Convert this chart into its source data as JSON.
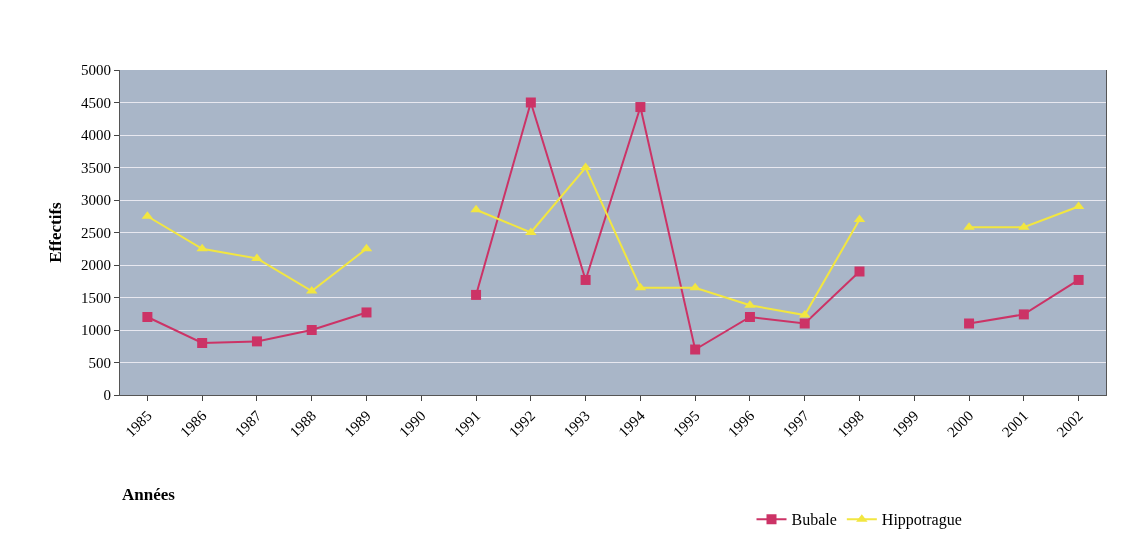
{
  "chart_data": {
    "type": "line",
    "xlabel": "Années",
    "ylabel": "Effectifs",
    "categories": [
      "1985",
      "1986",
      "1987",
      "1988",
      "1989",
      "1990",
      "1991",
      "1992",
      "1993",
      "1994",
      "1995",
      "1996",
      "1997",
      "1998",
      "1999",
      "2000",
      "2001",
      "2002"
    ],
    "series": [
      {
        "name": "Bubale",
        "color": "#cc3366",
        "marker": "square",
        "values": [
          1200,
          800,
          825,
          1000,
          1270,
          null,
          1540,
          4500,
          1770,
          4430,
          700,
          1200,
          1100,
          1900,
          null,
          1100,
          1240,
          1770
        ]
      },
      {
        "name": "Hippotrague",
        "color": "#f2e640",
        "marker": "triangle",
        "values": [
          2750,
          2250,
          2100,
          1600,
          2250,
          null,
          2850,
          2500,
          3500,
          1650,
          1650,
          1380,
          1230,
          2700,
          null,
          2580,
          2580,
          2900
        ]
      }
    ],
    "ylim": [
      0,
      5000
    ],
    "yticks": [
      0,
      500,
      1000,
      1500,
      2000,
      2500,
      3000,
      3500,
      4000,
      4500,
      5000
    ],
    "grid": "y",
    "legend": "bottom",
    "line_style": "solid"
  }
}
